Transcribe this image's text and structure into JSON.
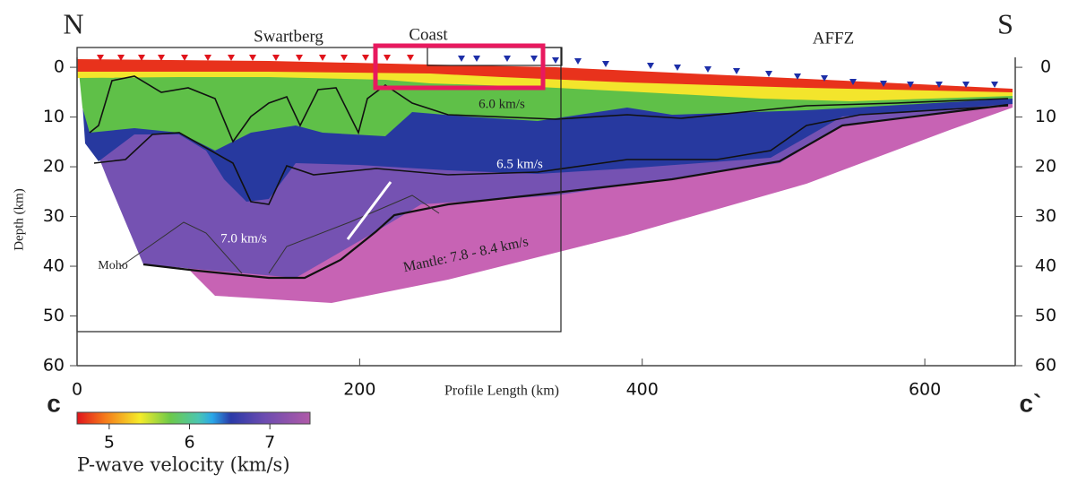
{
  "chart_data": {
    "type": "velocity-section",
    "ends": [
      "N",
      "S"
    ],
    "regions": [
      "Swartberg",
      "Coast",
      "AFFZ"
    ],
    "x_label": "Profile Length (km)",
    "y_label": "Depth (km)",
    "xlim": [
      0,
      664
    ],
    "xticks": [
      0,
      200,
      400,
      600
    ],
    "ylim": [
      -2,
      60
    ],
    "yticks": [
      0,
      10,
      20,
      30,
      40,
      50,
      60
    ],
    "invert_y": true,
    "contour_labels": [
      "6.0 km/s",
      "6.5 km/s",
      "7.0 km/s",
      "Mantle: 7.8 - 8.4 km/s"
    ],
    "moho_label": "Moho",
    "section_labels": [
      "c",
      "c`"
    ],
    "colorbar": {
      "label": "P-wave velocity (km/s)",
      "lim": [
        4.6,
        7.5
      ],
      "ticks": [
        5,
        6,
        7
      ]
    }
  }
}
